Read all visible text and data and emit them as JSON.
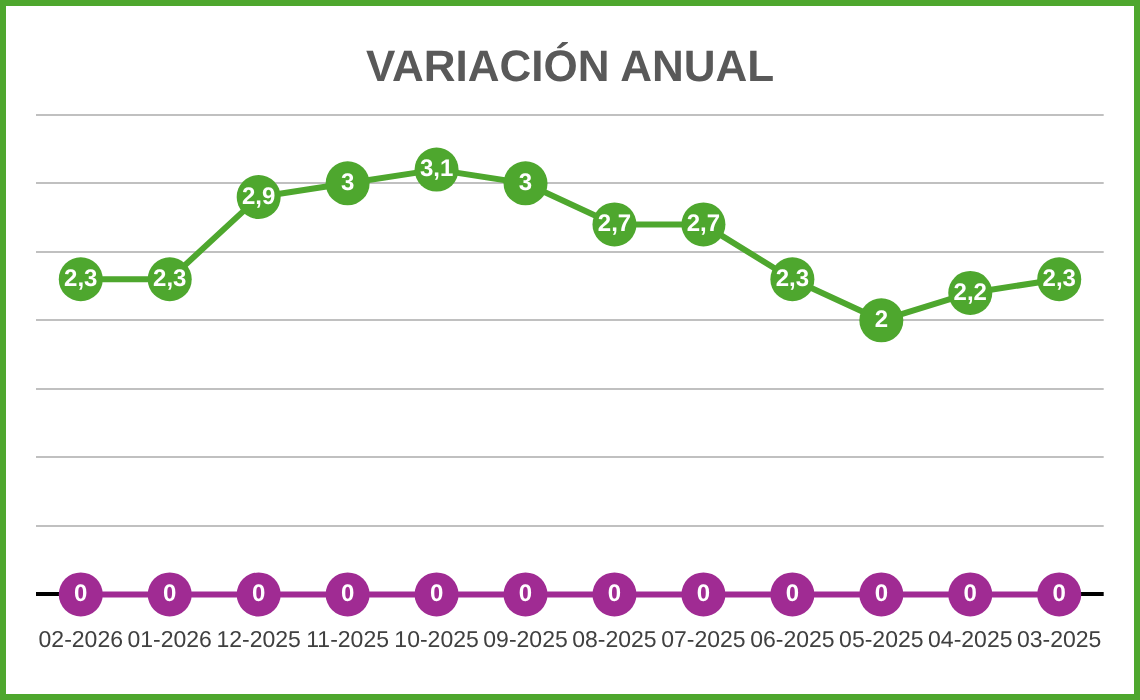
{
  "chart_data": {
    "type": "line",
    "title": "VARIACIÓN ANUAL",
    "categories": [
      "02-2026",
      "01-2026",
      "12-2025",
      "11-2025",
      "10-2025",
      "09-2025",
      "08-2025",
      "07-2025",
      "06-2025",
      "05-2025",
      "04-2025",
      "03-2025"
    ],
    "series": [
      {
        "color": "#4ea72e",
        "values": [
          2.3,
          2.3,
          2.9,
          3,
          3.1,
          3,
          2.7,
          2.7,
          2.3,
          2,
          2.2,
          2.3
        ],
        "value_labels": [
          "2,3",
          "2,3",
          "2,9",
          "3",
          "3,1",
          "3",
          "2,7",
          "2,7",
          "2,3",
          "2",
          "2,2",
          "2,3"
        ]
      },
      {
        "color": "#a02b93",
        "values": [
          0,
          0,
          0,
          0,
          0,
          0,
          0,
          0,
          0,
          0,
          0,
          0
        ],
        "value_labels": [
          "0",
          "0",
          "0",
          "0",
          "0",
          "0",
          "0",
          "0",
          "0",
          "0",
          "0",
          "0"
        ]
      }
    ],
    "ylim": [
      0,
      3.5
    ],
    "yticks": [
      {
        "value": 0,
        "label": null
      },
      {
        "value": 0.5,
        "label": null
      },
      {
        "value": 1,
        "label": null
      },
      {
        "value": 1.5,
        "label": null
      },
      {
        "value": 2,
        "label": null
      },
      {
        "value": 2.5,
        "label": null
      },
      {
        "value": 3,
        "label": null
      },
      {
        "value": 3.5,
        "label": null
      }
    ],
    "tick_labels": "x",
    "grid": "y",
    "legend": false,
    "marker": "circle",
    "line_style": "solid"
  }
}
